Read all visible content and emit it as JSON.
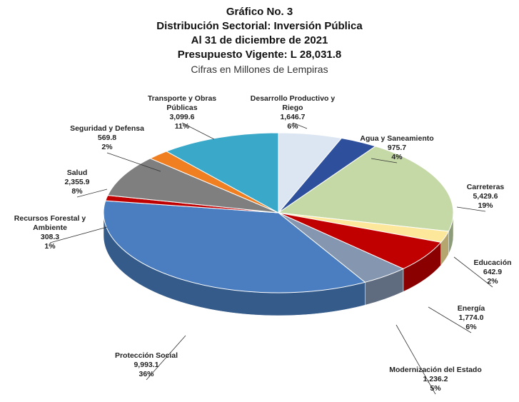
{
  "chart_data": {
    "type": "pie3d",
    "title": [
      "Gráfico No. 3",
      "Distribución Sectorial: Inversión Pública",
      "Al 31 de diciembre de 2021",
      "Presupuesto Vigente: L 28,031.8"
    ],
    "subtitle": "Cifras en Millones de Lempiras",
    "categories": [
      "Desarrollo Productivo y Riego",
      "Agua y Saneamiento",
      "Carreteras",
      "Educación",
      "Energía",
      "Modernización del Estado",
      "Protección Social",
      "Recursos Forestal y Ambiente",
      "Salud",
      "Seguridad y Defensa",
      "Transporte y Obras Públicas"
    ],
    "values": [
      1646.7,
      975.7,
      5429.6,
      642.9,
      1774.0,
      1236.2,
      9993.1,
      308.3,
      2355.9,
      569.8,
      3099.6
    ],
    "value_labels": [
      "1,646.7",
      "975.7",
      "5,429.6",
      "642.9",
      "1,774.0",
      "1,236.2",
      "9,993.1",
      "308.3",
      "2,355.9",
      "569.8",
      "3,099.6"
    ],
    "percent_labels": [
      "6%",
      "4%",
      "19%",
      "2%",
      "6%",
      "5%",
      "36%",
      "1%",
      "8%",
      "2%",
      "11%"
    ],
    "colors": [
      "#dce6f2",
      "#2e4f9b",
      "#c4d9a6",
      "#fce79b",
      "#c00000",
      "#8496b0",
      "#4a7ec0",
      "#c00000",
      "#7f7f7f",
      "#f07f22",
      "#3aa8c8"
    ]
  }
}
